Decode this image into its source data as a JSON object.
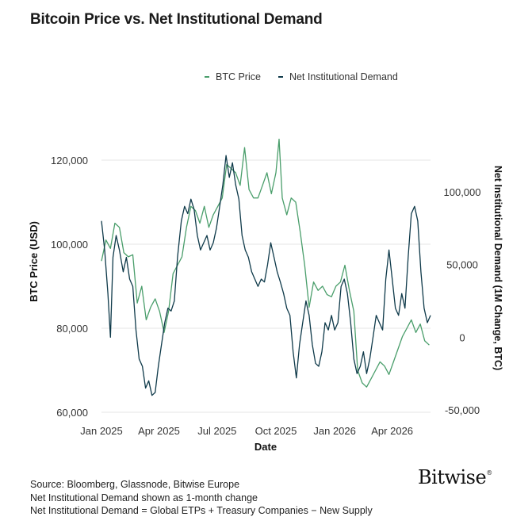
{
  "chart_data": {
    "type": "line",
    "title": "Bitcoin Price vs. Net Institutional Demand",
    "xlabel": "Date",
    "ylabel_left": "BTC Price (USD)",
    "ylabel_right": "Net Institutional Demand (1M Change, BTC)",
    "x_ticks": [
      "Jan 2025",
      "Apr 2025",
      "Jul 2025",
      "Oct 2025",
      "Jan 2026",
      "Apr 2026"
    ],
    "y_left_ticks": [
      "60,000",
      "80,000",
      "100,000",
      "120,000"
    ],
    "y_left_lim": [
      60000,
      125000
    ],
    "y_right_ticks": [
      "-50,000",
      "0",
      "50,000",
      "100,000"
    ],
    "y_right_lim": [
      -50000,
      100000
    ],
    "grid": true,
    "legend_position": "top",
    "series": [
      {
        "name": "BTC Price",
        "axis": "left",
        "color": "#4a9e6b",
        "points": [
          [
            "2025-01-01",
            96000
          ],
          [
            "2025-01-08",
            101000
          ],
          [
            "2025-01-15",
            99000
          ],
          [
            "2025-01-22",
            105000
          ],
          [
            "2025-01-29",
            104000
          ],
          [
            "2025-02-05",
            98000
          ],
          [
            "2025-02-12",
            97000
          ],
          [
            "2025-02-19",
            97500
          ],
          [
            "2025-02-26",
            86000
          ],
          [
            "2025-03-05",
            90000
          ],
          [
            "2025-03-12",
            82000
          ],
          [
            "2025-03-19",
            85000
          ],
          [
            "2025-03-26",
            87000
          ],
          [
            "2025-04-02",
            84000
          ],
          [
            "2025-04-09",
            79000
          ],
          [
            "2025-04-16",
            84000
          ],
          [
            "2025-04-23",
            93000
          ],
          [
            "2025-04-30",
            95000
          ],
          [
            "2025-05-07",
            97000
          ],
          [
            "2025-05-14",
            104000
          ],
          [
            "2025-05-21",
            109000
          ],
          [
            "2025-05-28",
            108000
          ],
          [
            "2025-06-04",
            105000
          ],
          [
            "2025-06-11",
            109000
          ],
          [
            "2025-06-18",
            104000
          ],
          [
            "2025-06-25",
            107000
          ],
          [
            "2025-07-02",
            109000
          ],
          [
            "2025-07-09",
            111000
          ],
          [
            "2025-07-16",
            119000
          ],
          [
            "2025-07-23",
            118000
          ],
          [
            "2025-07-30",
            117000
          ],
          [
            "2025-08-06",
            114000
          ],
          [
            "2025-08-13",
            123000
          ],
          [
            "2025-08-20",
            113000
          ],
          [
            "2025-08-27",
            111000
          ],
          [
            "2025-09-03",
            111000
          ],
          [
            "2025-09-10",
            114000
          ],
          [
            "2025-09-17",
            117000
          ],
          [
            "2025-09-24",
            112000
          ],
          [
            "2025-10-01",
            117000
          ],
          [
            "2025-10-06",
            125000
          ],
          [
            "2025-10-11",
            111000
          ],
          [
            "2025-10-18",
            107000
          ],
          [
            "2025-10-25",
            111000
          ],
          [
            "2025-11-01",
            110000
          ],
          [
            "2025-11-08",
            103000
          ],
          [
            "2025-11-15",
            95000
          ],
          [
            "2025-11-22",
            85000
          ],
          [
            "2025-11-29",
            91000
          ],
          [
            "2025-12-06",
            89000
          ],
          [
            "2025-12-13",
            90000
          ],
          [
            "2025-12-20",
            88000
          ],
          [
            "2025-12-27",
            87500
          ],
          [
            "2026-01-03",
            90000
          ],
          [
            "2026-01-10",
            91000
          ],
          [
            "2026-01-17",
            95000
          ],
          [
            "2026-01-24",
            89000
          ],
          [
            "2026-01-31",
            84000
          ],
          [
            "2026-02-06",
            70000
          ],
          [
            "2026-02-13",
            67000
          ],
          [
            "2026-02-20",
            66000
          ],
          [
            "2026-02-27",
            68000
          ],
          [
            "2026-03-06",
            70000
          ],
          [
            "2026-03-13",
            72000
          ],
          [
            "2026-03-20",
            71000
          ],
          [
            "2026-03-27",
            69000
          ],
          [
            "2026-04-03",
            72000
          ],
          [
            "2026-04-10",
            75000
          ],
          [
            "2026-04-17",
            78000
          ],
          [
            "2026-04-24",
            80000
          ],
          [
            "2026-05-01",
            82000
          ],
          [
            "2026-05-08",
            79000
          ],
          [
            "2026-05-15",
            81000
          ],
          [
            "2026-05-22",
            77000
          ],
          [
            "2026-05-29",
            76000
          ]
        ]
      },
      {
        "name": "Net Institutional Demand",
        "axis": "right",
        "color": "#0f3a4a",
        "points": [
          [
            "2025-01-01",
            80000
          ],
          [
            "2025-01-06",
            60000
          ],
          [
            "2025-01-11",
            30000
          ],
          [
            "2025-01-15",
            0
          ],
          [
            "2025-01-19",
            55000
          ],
          [
            "2025-01-24",
            70000
          ],
          [
            "2025-01-29",
            60000
          ],
          [
            "2025-02-04",
            45000
          ],
          [
            "2025-02-09",
            55000
          ],
          [
            "2025-02-14",
            40000
          ],
          [
            "2025-02-19",
            35000
          ],
          [
            "2025-02-24",
            5000
          ],
          [
            "2025-03-01",
            -15000
          ],
          [
            "2025-03-06",
            -20000
          ],
          [
            "2025-03-11",
            -35000
          ],
          [
            "2025-03-16",
            -30000
          ],
          [
            "2025-03-21",
            -40000
          ],
          [
            "2025-03-26",
            -38000
          ],
          [
            "2025-03-31",
            -20000
          ],
          [
            "2025-04-05",
            -5000
          ],
          [
            "2025-04-10",
            10000
          ],
          [
            "2025-04-15",
            20000
          ],
          [
            "2025-04-20",
            18000
          ],
          [
            "2025-04-25",
            25000
          ],
          [
            "2025-04-30",
            55000
          ],
          [
            "2025-05-06",
            80000
          ],
          [
            "2025-05-11",
            90000
          ],
          [
            "2025-05-16",
            85000
          ],
          [
            "2025-05-21",
            95000
          ],
          [
            "2025-05-26",
            88000
          ],
          [
            "2025-05-31",
            70000
          ],
          [
            "2025-06-05",
            60000
          ],
          [
            "2025-06-10",
            65000
          ],
          [
            "2025-06-15",
            70000
          ],
          [
            "2025-06-20",
            60000
          ],
          [
            "2025-06-25",
            65000
          ],
          [
            "2025-06-30",
            75000
          ],
          [
            "2025-07-05",
            90000
          ],
          [
            "2025-07-10",
            105000
          ],
          [
            "2025-07-15",
            125000
          ],
          [
            "2025-07-20",
            110000
          ],
          [
            "2025-07-25",
            120000
          ],
          [
            "2025-07-30",
            105000
          ],
          [
            "2025-08-04",
            95000
          ],
          [
            "2025-08-09",
            70000
          ],
          [
            "2025-08-14",
            60000
          ],
          [
            "2025-08-19",
            55000
          ],
          [
            "2025-08-24",
            45000
          ],
          [
            "2025-08-29",
            40000
          ],
          [
            "2025-09-03",
            35000
          ],
          [
            "2025-09-08",
            40000
          ],
          [
            "2025-09-13",
            38000
          ],
          [
            "2025-09-18",
            50000
          ],
          [
            "2025-09-23",
            65000
          ],
          [
            "2025-09-28",
            55000
          ],
          [
            "2025-10-03",
            45000
          ],
          [
            "2025-10-08",
            38000
          ],
          [
            "2025-10-13",
            30000
          ],
          [
            "2025-10-18",
            20000
          ],
          [
            "2025-10-23",
            15000
          ],
          [
            "2025-10-28",
            -10000
          ],
          [
            "2025-11-02",
            -28000
          ],
          [
            "2025-11-07",
            -5000
          ],
          [
            "2025-11-12",
            10000
          ],
          [
            "2025-11-17",
            25000
          ],
          [
            "2025-11-22",
            15000
          ],
          [
            "2025-11-27",
            -5000
          ],
          [
            "2025-12-02",
            -18000
          ],
          [
            "2025-12-07",
            -20000
          ],
          [
            "2025-12-12",
            -10000
          ],
          [
            "2025-12-17",
            10000
          ],
          [
            "2025-12-22",
            5000
          ],
          [
            "2025-12-27",
            15000
          ],
          [
            "2026-01-01",
            5000
          ],
          [
            "2026-01-06",
            10000
          ],
          [
            "2026-01-11",
            35000
          ],
          [
            "2026-01-16",
            40000
          ],
          [
            "2026-01-21",
            30000
          ],
          [
            "2026-01-26",
            10000
          ],
          [
            "2026-01-31",
            -15000
          ],
          [
            "2026-02-05",
            -25000
          ],
          [
            "2026-02-10",
            -20000
          ],
          [
            "2026-02-15",
            -10000
          ],
          [
            "2026-02-20",
            -25000
          ],
          [
            "2026-02-25",
            -15000
          ],
          [
            "2026-03-02",
            0
          ],
          [
            "2026-03-07",
            15000
          ],
          [
            "2026-03-12",
            10000
          ],
          [
            "2026-03-17",
            5000
          ],
          [
            "2026-03-22",
            40000
          ],
          [
            "2026-03-27",
            60000
          ],
          [
            "2026-04-01",
            40000
          ],
          [
            "2026-04-06",
            20000
          ],
          [
            "2026-04-11",
            15000
          ],
          [
            "2026-04-16",
            30000
          ],
          [
            "2026-04-21",
            20000
          ],
          [
            "2026-04-26",
            55000
          ],
          [
            "2026-05-01",
            85000
          ],
          [
            "2026-05-06",
            90000
          ],
          [
            "2026-05-11",
            80000
          ],
          [
            "2026-05-16",
            45000
          ],
          [
            "2026-05-21",
            20000
          ],
          [
            "2026-05-26",
            10000
          ],
          [
            "2026-05-31",
            15000
          ]
        ]
      }
    ]
  },
  "footer": {
    "source": "Source: Bloomberg, Glassnode, Bitwise Europe",
    "note1": "Net Institutional Demand shown as 1-month change",
    "note2": "Net Institutional Demand = Global ETPs + Treasury Companies − New Supply"
  },
  "logo": {
    "text": "Bitwise",
    "mark": "®"
  }
}
